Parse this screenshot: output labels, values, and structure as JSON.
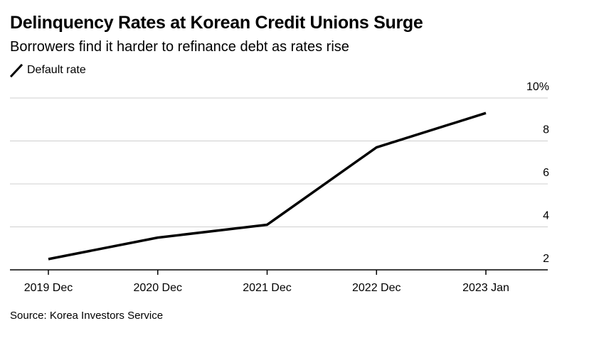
{
  "chart_data": {
    "type": "line",
    "title": "Delinquency Rates at Korean Credit Unions Surge",
    "subtitle": "Borrowers find it harder to refinance debt as rates rise",
    "categories": [
      "2019 Dec",
      "2020 Dec",
      "2021 Dec",
      "2022 Dec",
      "2023 Jan"
    ],
    "series": [
      {
        "name": "Default rate",
        "values": [
          2.5,
          3.5,
          4.1,
          7.7,
          9.3
        ],
        "color": "#000000"
      }
    ],
    "yticks": [
      "10%",
      "8",
      "6",
      "4",
      "2"
    ],
    "ytick_values": [
      10,
      8,
      6,
      4,
      2
    ],
    "ylim": [
      2,
      10
    ],
    "xlabel": "",
    "ylabel": "",
    "grid": true,
    "legend_position": "top-left",
    "source": "Source: Korea Investors Service"
  }
}
